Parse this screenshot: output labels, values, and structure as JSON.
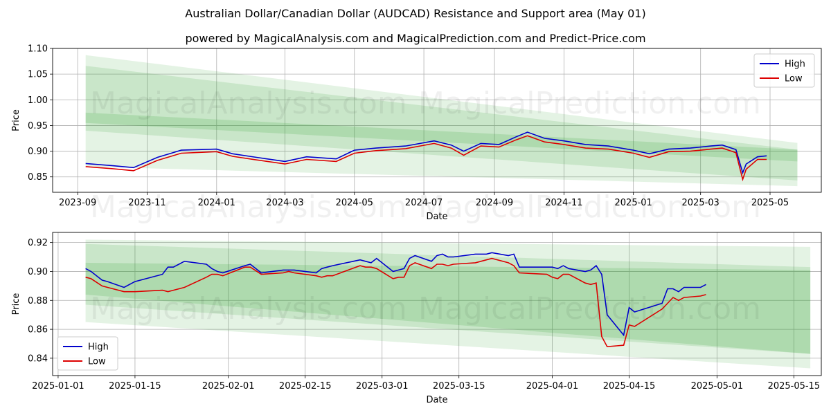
{
  "title": "Australian Dollar/Canadian Dollar (AUDCAD) Resistance and Support area (May 01)",
  "subtitle": "powered by MagicalAnalysis.com and MagicalPrediction.com and Predict-Price.com",
  "watermarks": [
    "MagicalAnalysis.com",
    "MagicalPrediction.com"
  ],
  "colors": {
    "high": "#0000cc",
    "low": "#dd0000",
    "band": "#2ca02c",
    "grid": "#b0b0b0"
  },
  "chart_data": [
    {
      "type": "line",
      "xlabel": "Date",
      "ylabel": "Price",
      "x_ticks": [
        "2023-09",
        "2023-11",
        "2024-01",
        "2024-03",
        "2024-05",
        "2024-07",
        "2024-09",
        "2024-11",
        "2025-01",
        "2025-03",
        "2025-05"
      ],
      "y_ticks": [
        "0.85",
        "0.90",
        "0.95",
        "1.00",
        "1.05",
        "1.10"
      ],
      "xlim": [
        "2023-08-10",
        "2025-06-15"
      ],
      "ylim": [
        0.82,
        1.1
      ],
      "grid": true,
      "legend_position": "top-right",
      "series": [
        {
          "name": "High",
          "x": [
            "2023-09-08",
            "2023-10-01",
            "2023-10-20",
            "2023-11-10",
            "2023-12-01",
            "2024-01-01",
            "2024-01-15",
            "2024-02-05",
            "2024-03-01",
            "2024-03-20",
            "2024-04-15",
            "2024-05-01",
            "2024-05-20",
            "2024-06-15",
            "2024-07-10",
            "2024-07-25",
            "2024-08-05",
            "2024-08-20",
            "2024-09-05",
            "2024-09-20",
            "2024-09-30",
            "2024-10-15",
            "2024-11-01",
            "2024-11-20",
            "2024-12-10",
            "2025-01-01",
            "2025-01-15",
            "2025-02-01",
            "2025-02-20",
            "2025-03-10",
            "2025-03-20",
            "2025-04-01",
            "2025-04-07",
            "2025-04-10",
            "2025-04-20",
            "2025-04-28"
          ],
          "values": [
            0.876,
            0.872,
            0.868,
            0.888,
            0.902,
            0.904,
            0.895,
            0.888,
            0.88,
            0.889,
            0.885,
            0.902,
            0.906,
            0.91,
            0.92,
            0.912,
            0.9,
            0.915,
            0.913,
            0.928,
            0.937,
            0.925,
            0.92,
            0.913,
            0.91,
            0.902,
            0.895,
            0.904,
            0.906,
            0.91,
            0.912,
            0.903,
            0.858,
            0.875,
            0.889,
            0.891
          ]
        },
        {
          "name": "Low",
          "x": [
            "2023-09-08",
            "2023-10-01",
            "2023-10-20",
            "2023-11-10",
            "2023-12-01",
            "2024-01-01",
            "2024-01-15",
            "2024-02-05",
            "2024-03-01",
            "2024-03-20",
            "2024-04-15",
            "2024-05-01",
            "2024-05-20",
            "2024-06-15",
            "2024-07-10",
            "2024-07-25",
            "2024-08-05",
            "2024-08-20",
            "2024-09-05",
            "2024-09-20",
            "2024-09-30",
            "2024-10-15",
            "2024-11-01",
            "2024-11-20",
            "2024-12-10",
            "2025-01-01",
            "2025-01-15",
            "2025-02-01",
            "2025-02-20",
            "2025-03-10",
            "2025-03-20",
            "2025-04-01",
            "2025-04-07",
            "2025-04-10",
            "2025-04-20",
            "2025-04-28"
          ],
          "values": [
            0.87,
            0.866,
            0.862,
            0.882,
            0.896,
            0.899,
            0.89,
            0.883,
            0.875,
            0.884,
            0.88,
            0.896,
            0.901,
            0.905,
            0.915,
            0.906,
            0.892,
            0.91,
            0.908,
            0.922,
            0.93,
            0.918,
            0.913,
            0.906,
            0.904,
            0.896,
            0.888,
            0.899,
            0.9,
            0.904,
            0.906,
            0.897,
            0.845,
            0.865,
            0.884,
            0.884
          ]
        }
      ],
      "bands": [
        {
          "x": [
            "2023-09-08",
            "2025-05-25"
          ],
          "upper": [
            1.087,
            0.916
          ],
          "lower": [
            0.87,
            0.832
          ]
        },
        {
          "x": [
            "2023-09-08",
            "2025-05-25"
          ],
          "upper": [
            1.066,
            0.903
          ],
          "lower": [
            0.94,
            0.843
          ]
        },
        {
          "x": [
            "2023-09-08",
            "2025-05-25"
          ],
          "upper": [
            0.975,
            0.903
          ],
          "lower": [
            0.955,
            0.88
          ]
        }
      ]
    },
    {
      "type": "line",
      "xlabel": "Date",
      "ylabel": "Price",
      "x_ticks": [
        "2025-01-01",
        "2025-01-15",
        "2025-02-01",
        "2025-02-15",
        "2025-03-01",
        "2025-03-15",
        "2025-04-01",
        "2025-04-15",
        "2025-05-01",
        "2025-05-15"
      ],
      "y_ticks": [
        "0.84",
        "0.86",
        "0.88",
        "0.90",
        "0.92"
      ],
      "xlim": [
        "2024-12-31",
        "2025-05-20"
      ],
      "ylim": [
        0.828,
        0.927
      ],
      "grid": true,
      "legend_position": "bottom-left",
      "series": [
        {
          "name": "High",
          "x": [
            "2025-01-06",
            "2025-01-07",
            "2025-01-09",
            "2025-01-10",
            "2025-01-13",
            "2025-01-15",
            "2025-01-20",
            "2025-01-21",
            "2025-01-22",
            "2025-01-24",
            "2025-01-28",
            "2025-01-29",
            "2025-01-30",
            "2025-01-31",
            "2025-02-04",
            "2025-02-05",
            "2025-02-07",
            "2025-02-11",
            "2025-02-12",
            "2025-02-13",
            "2025-02-17",
            "2025-02-18",
            "2025-02-19",
            "2025-02-20",
            "2025-02-25",
            "2025-02-26",
            "2025-02-27",
            "2025-02-28",
            "2025-03-03",
            "2025-03-04",
            "2025-03-05",
            "2025-03-06",
            "2025-03-07",
            "2025-03-10",
            "2025-03-11",
            "2025-03-12",
            "2025-03-13",
            "2025-03-14",
            "2025-03-18",
            "2025-03-19",
            "2025-03-20",
            "2025-03-21",
            "2025-03-24",
            "2025-03-25",
            "2025-03-26",
            "2025-03-31",
            "2025-04-01",
            "2025-04-02",
            "2025-04-03",
            "2025-04-04",
            "2025-04-07",
            "2025-04-08",
            "2025-04-09",
            "2025-04-10",
            "2025-04-11",
            "2025-04-14",
            "2025-04-15",
            "2025-04-16",
            "2025-04-21",
            "2025-04-22",
            "2025-04-23",
            "2025-04-24",
            "2025-04-25",
            "2025-04-28",
            "2025-04-29"
          ],
          "values": [
            0.902,
            0.9,
            0.894,
            0.893,
            0.889,
            0.893,
            0.898,
            0.903,
            0.903,
            0.907,
            0.905,
            0.902,
            0.9,
            0.899,
            0.904,
            0.905,
            0.899,
            0.901,
            0.901,
            0.901,
            0.899,
            0.902,
            0.903,
            0.904,
            0.908,
            0.907,
            0.906,
            0.909,
            0.9,
            0.901,
            0.902,
            0.909,
            0.911,
            0.907,
            0.911,
            0.912,
            0.91,
            0.91,
            0.912,
            0.912,
            0.912,
            0.913,
            0.911,
            0.912,
            0.903,
            0.903,
            0.903,
            0.902,
            0.904,
            0.902,
            0.9,
            0.901,
            0.904,
            0.898,
            0.87,
            0.856,
            0.875,
            0.872,
            0.878,
            0.888,
            0.888,
            0.886,
            0.889,
            0.889,
            0.891
          ]
        },
        {
          "name": "Low",
          "x": [
            "2025-01-06",
            "2025-01-07",
            "2025-01-09",
            "2025-01-10",
            "2025-01-13",
            "2025-01-15",
            "2025-01-20",
            "2025-01-21",
            "2025-01-22",
            "2025-01-24",
            "2025-01-28",
            "2025-01-29",
            "2025-01-30",
            "2025-01-31",
            "2025-02-04",
            "2025-02-05",
            "2025-02-07",
            "2025-02-11",
            "2025-02-12",
            "2025-02-13",
            "2025-02-17",
            "2025-02-18",
            "2025-02-19",
            "2025-02-20",
            "2025-02-25",
            "2025-02-26",
            "2025-02-27",
            "2025-02-28",
            "2025-03-03",
            "2025-03-04",
            "2025-03-05",
            "2025-03-06",
            "2025-03-07",
            "2025-03-10",
            "2025-03-11",
            "2025-03-12",
            "2025-03-13",
            "2025-03-14",
            "2025-03-18",
            "2025-03-19",
            "2025-03-20",
            "2025-03-21",
            "2025-03-24",
            "2025-03-25",
            "2025-03-26",
            "2025-03-31",
            "2025-04-01",
            "2025-04-02",
            "2025-04-03",
            "2025-04-04",
            "2025-04-07",
            "2025-04-08",
            "2025-04-09",
            "2025-04-10",
            "2025-04-11",
            "2025-04-14",
            "2025-04-15",
            "2025-04-16",
            "2025-04-21",
            "2025-04-22",
            "2025-04-23",
            "2025-04-24",
            "2025-04-25",
            "2025-04-28",
            "2025-04-29"
          ],
          "values": [
            0.896,
            0.895,
            0.89,
            0.889,
            0.886,
            0.886,
            0.887,
            0.886,
            0.887,
            0.889,
            0.896,
            0.898,
            0.898,
            0.897,
            0.903,
            0.903,
            0.898,
            0.899,
            0.9,
            0.899,
            0.897,
            0.896,
            0.897,
            0.897,
            0.904,
            0.903,
            0.903,
            0.902,
            0.895,
            0.896,
            0.896,
            0.904,
            0.906,
            0.902,
            0.905,
            0.905,
            0.904,
            0.905,
            0.906,
            0.907,
            0.908,
            0.909,
            0.906,
            0.904,
            0.899,
            0.898,
            0.896,
            0.895,
            0.898,
            0.898,
            0.892,
            0.891,
            0.892,
            0.855,
            0.848,
            0.849,
            0.863,
            0.862,
            0.874,
            0.878,
            0.882,
            0.88,
            0.882,
            0.883,
            0.884
          ]
        }
      ],
      "bands": [
        {
          "x": [
            "2025-01-06",
            "2025-05-18"
          ],
          "upper": [
            0.922,
            0.917
          ],
          "lower": [
            0.865,
            0.833
          ]
        },
        {
          "x": [
            "2025-01-06",
            "2025-05-18"
          ],
          "upper": [
            0.919,
            0.903
          ],
          "lower": [
            0.877,
            0.843
          ]
        },
        {
          "x": [
            "2025-01-06",
            "2025-05-18"
          ],
          "upper": [
            0.906,
            0.901
          ],
          "lower": [
            0.884,
            0.843
          ]
        }
      ]
    }
  ]
}
